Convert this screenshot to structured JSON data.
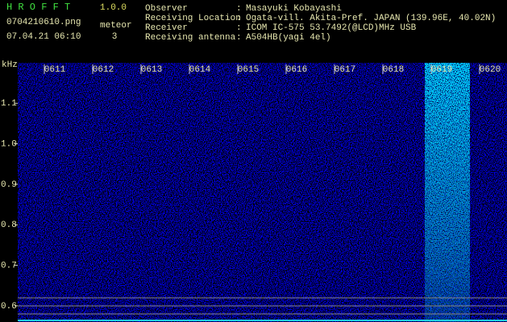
{
  "header": {
    "app_title": "H R O F F T",
    "version": "1.0.0",
    "filename": "0704210610.png",
    "datetime": "07.04.21 06:10",
    "meteor_label": "meteor",
    "meteor_count": 3,
    "separator": ":",
    "fields": [
      {
        "label": "Observer",
        "value": "Masayuki Kobayashi"
      },
      {
        "label": "Receiving Location",
        "value": "Ogata-vill. Akita-Pref. JAPAN (139.96E, 40.02N)"
      },
      {
        "label": "Receiver",
        "value": "ICOM IC-575 53.7492(@LCD)MHz USB"
      },
      {
        "label": "Receiving antenna",
        "value": "A504HB(yagi 4el)"
      }
    ]
  },
  "chart_data": {
    "type": "spectrogram",
    "y_label": "kHz",
    "ylim": [
      0.56,
      1.2
    ],
    "yticks": [
      0.6,
      0.7,
      0.8,
      0.9,
      {
        "value": 1,
        "label": "1.0"
      },
      1.1
    ],
    "categories": [
      "0611",
      "0612",
      "0613",
      "0614",
      "0615",
      "0616",
      "0617",
      "0618",
      "0619",
      "0620"
    ]
  }
}
